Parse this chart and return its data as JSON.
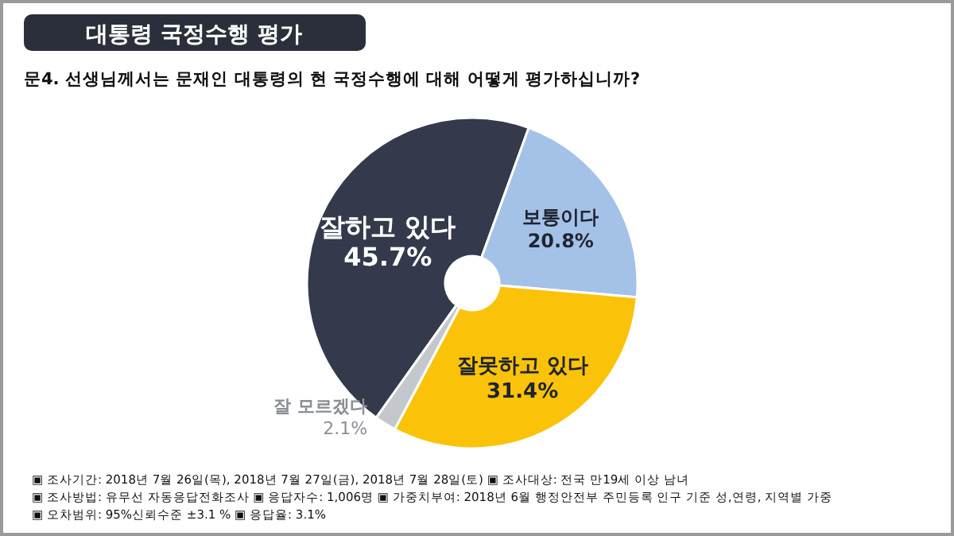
{
  "chart_data": {
    "type": "donut",
    "title": "대통령 국정수행 평가",
    "subtitle": "문4. 선생님께서는 문재인 대통령의 현 국정수행에 대해 어떻게 평가하십니까?",
    "categories": [
      "잘하고 있다",
      "보통이다",
      "잘못하고 있다",
      "잘 모르겠다"
    ],
    "values": [
      45.7,
      20.8,
      31.4,
      2.1
    ],
    "colors": [
      "#343a4b",
      "#a4c2e8",
      "#fbc20a",
      "#c4c8cc"
    ],
    "value_labels": [
      "45.7%",
      "20.8%",
      "31.4%",
      "2.1%"
    ],
    "legend": false,
    "annotations": [
      "▣ 조사기간: 2018년 7월 26일(목), 2018년 7월 27일(금), 2018년 7월 28일(토) ▣ 조사대상: 전국 만19세 이상 남녀",
      "▣ 조사방법: 유무선 자동응답전화조사 ▣ 응답자수: 1,006명 ▣ 가중치부여: 2018년 6월 행정안전부 주민등록 인구 기준 성,연령, 지역별 가중",
      "▣ 오차범위: 95%신뢰수준 ±3.1 % ▣ 응답율: 3.1%"
    ]
  }
}
